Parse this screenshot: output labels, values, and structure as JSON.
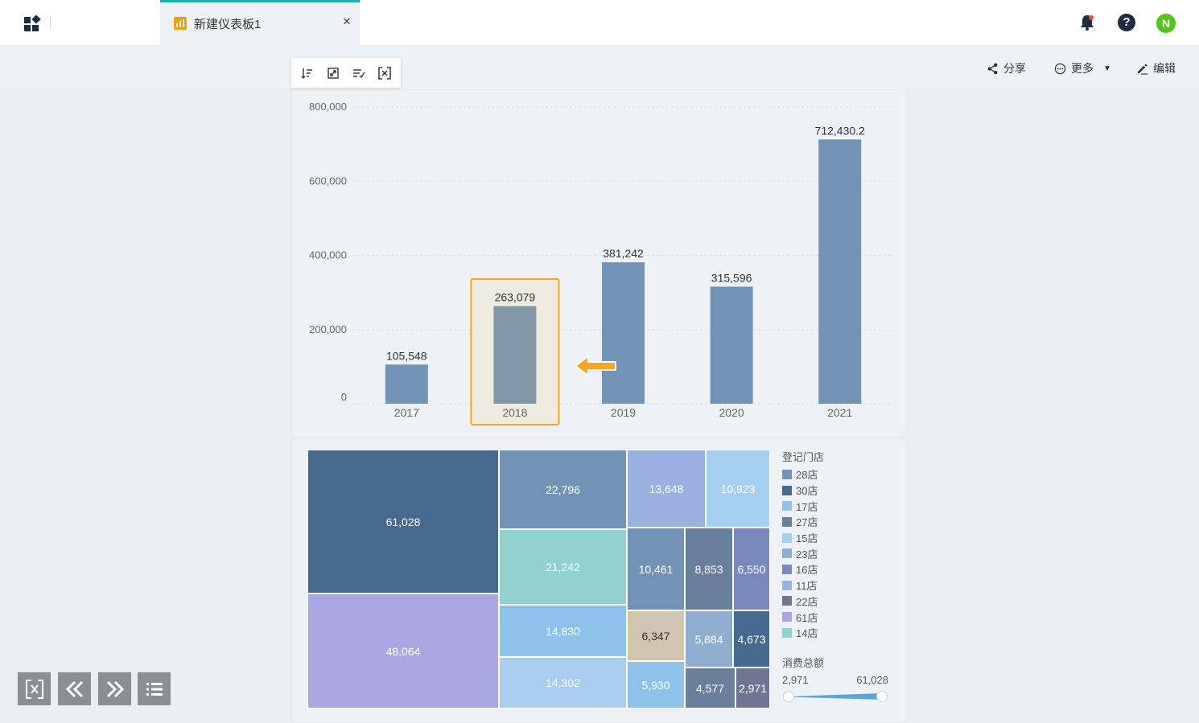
{
  "header": {
    "tab_title": "新建仪表板1",
    "close_glyph": "×",
    "apps_icon": "apps-grid-icon",
    "bell_icon": "bell-icon",
    "help_label": "?",
    "avatar_letter": "N",
    "avatar_color": "#52c41a",
    "tab_accent": "#20b2aa"
  },
  "toolbar": {
    "share_label": "分享",
    "more_label": "更多",
    "edit_label": "编辑"
  },
  "chart_tools": [
    "sort-icon",
    "expand-icon",
    "sort-text-icon",
    "fullscreen-icon"
  ],
  "chart_data": [
    {
      "type": "bar",
      "categories": [
        "2017",
        "2018",
        "2019",
        "2020",
        "2021"
      ],
      "values": [
        105548,
        263079,
        381242,
        315596,
        712430.2
      ],
      "data_labels": [
        "105,548",
        "263,079",
        "381,242",
        "315,596",
        "712,430.2"
      ],
      "y_ticks": [
        "0",
        "200,000",
        "400,000",
        "600,000",
        "800,000"
      ],
      "y_tick_values": [
        0,
        200000,
        400000,
        600000,
        800000
      ],
      "ylim": [
        0,
        800000
      ],
      "bar_color": "#7393b6",
      "highlighted_color": "#8497a7",
      "highlighted_category": "2018",
      "highlight_border": "#f5a623",
      "grid": true
    },
    {
      "type": "treemap",
      "legend_title": "登记门店",
      "cells": [
        {
          "label": "61,028",
          "value": 61028,
          "color": "#45698f"
        },
        {
          "label": "48,064",
          "value": 48064,
          "color": "#a9a7e1"
        },
        {
          "label": "22,796",
          "value": 22796,
          "color": "#7393b6"
        },
        {
          "label": "21,242",
          "value": 21242,
          "color": "#92d1cf"
        },
        {
          "label": "14,830",
          "value": 14830,
          "color": "#8fc2eb"
        },
        {
          "label": "14,302",
          "value": 14302,
          "color": "#a8cdef"
        },
        {
          "label": "13,648",
          "value": 13648,
          "color": "#9ab1e0"
        },
        {
          "label": "10,923",
          "value": 10923,
          "color": "#a6cff0"
        },
        {
          "label": "10,461",
          "value": 10461,
          "color": "#7393b6"
        },
        {
          "label": "8,853",
          "value": 8853,
          "color": "#6a7f9b"
        },
        {
          "label": "6,550",
          "value": 6550,
          "color": "#7b88bd"
        },
        {
          "label": "6,347",
          "value": 6347,
          "color": "#cfc6b2"
        },
        {
          "label": "5,884",
          "value": 5884,
          "color": "#8faed0"
        },
        {
          "label": "4,673",
          "value": 4673,
          "color": "#45698f"
        },
        {
          "label": "5,930",
          "value": 5930,
          "color": "#8fc2eb"
        },
        {
          "label": "4,577",
          "value": 4577,
          "color": "#6a7f9b"
        },
        {
          "label": "2,971",
          "value": 2971,
          "color": "#6e7694"
        }
      ],
      "legend": [
        {
          "label": "28店",
          "color": "#7393b6"
        },
        {
          "label": "30店",
          "color": "#45698f"
        },
        {
          "label": "17店",
          "color": "#8fc2eb"
        },
        {
          "label": "27店",
          "color": "#6a7f9b"
        },
        {
          "label": "15店",
          "color": "#a6cff0"
        },
        {
          "label": "23店",
          "color": "#8faed0"
        },
        {
          "label": "16店",
          "color": "#7b88bd"
        },
        {
          "label": "11店",
          "color": "#9ab1e0"
        },
        {
          "label": "22店",
          "color": "#6e7694"
        },
        {
          "label": "61店",
          "color": "#a9a7e1"
        },
        {
          "label": "14店",
          "color": "#92d1cf"
        }
      ],
      "range_title": "消费总额",
      "range_min": "2,971",
      "range_max": "61,028",
      "range_color": "#5aa5e0"
    }
  ],
  "nav": [
    "fit-screen-icon",
    "prev-page-icon",
    "next-page-icon",
    "list-icon"
  ]
}
